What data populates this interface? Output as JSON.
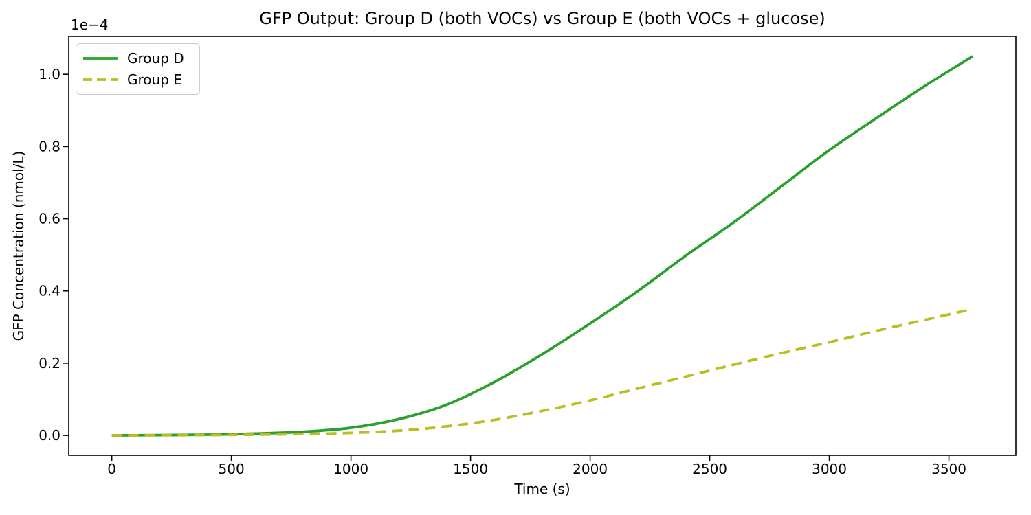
{
  "figure": {
    "title": "GFP Output: Group D (both VOCs) vs Group E (both VOCs + glucose)",
    "y_offset_text": "1e−4",
    "xlabel": "Time (s)",
    "ylabel": "GFP Concentration (nmol/L)",
    "legend": {
      "items": [
        {
          "label": "Group D",
          "color": "#2ca02c",
          "line_style": "solid"
        },
        {
          "label": "Group E",
          "color": "#bcbd22",
          "line_style": "dashed"
        }
      ]
    }
  },
  "chart_data": {
    "type": "line",
    "title": "GFP Output: Group D (both VOCs) vs Group E (both VOCs + glucose)",
    "xlabel": "Time (s)",
    "ylabel": "GFP Concentration (nmol/L)",
    "y_unit_note": "y values in units of 1e−4 nmol/L (axis offset multiplier shown as 1e−4)",
    "x": [
      0,
      200,
      400,
      600,
      800,
      1000,
      1200,
      1400,
      1600,
      1800,
      2000,
      2200,
      2400,
      2600,
      2800,
      3000,
      3200,
      3400,
      3600
    ],
    "series": [
      {
        "name": "Group D",
        "color": "#2ca02c",
        "line_style": "solid",
        "values": [
          0,
          0.001,
          0.002,
          0.005,
          0.01,
          0.021,
          0.045,
          0.085,
          0.148,
          0.225,
          0.31,
          0.4,
          0.498,
          0.59,
          0.69,
          0.79,
          0.88,
          0.968,
          1.05
        ]
      },
      {
        "name": "Group E",
        "color": "#bcbd22",
        "line_style": "dashed",
        "values": [
          0,
          0.0005,
          0.001,
          0.002,
          0.004,
          0.007,
          0.013,
          0.025,
          0.043,
          0.068,
          0.097,
          0.13,
          0.163,
          0.196,
          0.228,
          0.258,
          0.29,
          0.32,
          0.35
        ]
      }
    ],
    "xlim": [
      -180,
      3780
    ],
    "ylim": [
      -0.055,
      1.105
    ],
    "x_ticks": [
      0,
      500,
      1000,
      1500,
      2000,
      2500,
      3000,
      3500
    ],
    "x_tick_labels": [
      "0",
      "500",
      "1000",
      "1500",
      "2000",
      "2500",
      "3000",
      "3500"
    ],
    "y_ticks": [
      0.0,
      0.2,
      0.4,
      0.6,
      0.8,
      1.0
    ],
    "y_tick_labels": [
      "0.0",
      "0.2",
      "0.4",
      "0.6",
      "0.8",
      "1.0"
    ],
    "grid": false,
    "legend_position": "upper left"
  }
}
